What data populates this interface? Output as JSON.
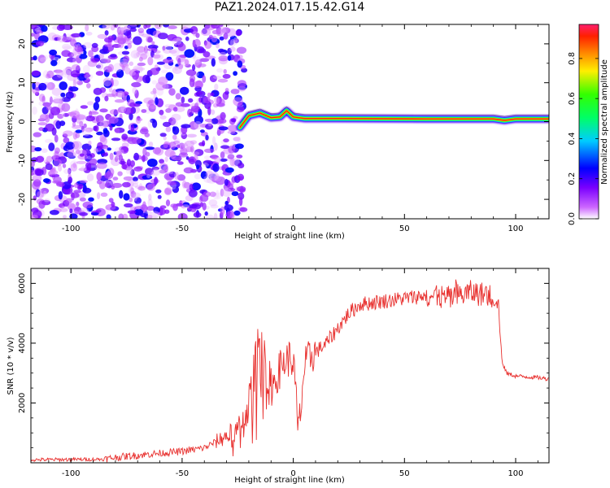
{
  "title": "PAZ1.2024.017.15.42.G14",
  "chart_data": [
    {
      "type": "heatmap",
      "title": "PAZ1.2024.017.15.42.G14",
      "xlabel": "Height of straight line (km)",
      "ylabel": "Frequency (Hz)",
      "xlim": [
        -118,
        115
      ],
      "ylim": [
        -25,
        25
      ],
      "x_ticks": [
        -100,
        -50,
        0,
        50,
        100
      ],
      "y_ticks": [
        -20,
        -10,
        0,
        10,
        20
      ],
      "grid": false,
      "colorbar": {
        "label": "Normalized spectral amplitude",
        "range": [
          0.0,
          0.97
        ],
        "ticks": [
          0.0,
          0.2,
          0.4,
          0.6,
          0.8
        ],
        "colormap": "gist_rainbow_r",
        "low_color": "#ffffff",
        "high_color": "#ff1f6e"
      },
      "features": {
        "noise_region_km": [
          -118,
          -22
        ],
        "noise_amplitude_range": [
          0.0,
          0.25
        ],
        "signal_track": [
          {
            "x": -24,
            "y": -1.5
          },
          {
            "x": -20,
            "y": 1.5
          },
          {
            "x": -15,
            "y": 2.2
          },
          {
            "x": -10,
            "y": 1.0
          },
          {
            "x": -6,
            "y": 1.2
          },
          {
            "x": -3,
            "y": 2.8
          },
          {
            "x": 0,
            "y": 1.2
          },
          {
            "x": 5,
            "y": 0.8
          },
          {
            "x": 20,
            "y": 0.8
          },
          {
            "x": 60,
            "y": 0.7
          },
          {
            "x": 90,
            "y": 0.7
          },
          {
            "x": 95,
            "y": 0.3
          },
          {
            "x": 100,
            "y": 0.7
          },
          {
            "x": 115,
            "y": 0.7
          }
        ],
        "signal_peak_amplitude": 0.95
      }
    },
    {
      "type": "line",
      "xlabel": "Height of straight line (km)",
      "ylabel": "SNR (10 * v/v)",
      "xlim": [
        -118,
        115
      ],
      "ylim": [
        0,
        6500
      ],
      "x_ticks": [
        -100,
        -50,
        0,
        50,
        100
      ],
      "y_ticks": [
        2000,
        4000,
        6000
      ],
      "grid": false,
      "series": [
        {
          "color": "#e8312f",
          "points": [
            [
              -118,
              100
            ],
            [
              -100,
              110
            ],
            [
              -85,
              120
            ],
            [
              -80,
              180
            ],
            [
              -70,
              250
            ],
            [
              -60,
              320
            ],
            [
              -50,
              380
            ],
            [
              -40,
              500
            ],
            [
              -35,
              700
            ],
            [
              -30,
              900
            ],
            [
              -25,
              1100
            ],
            [
              -22,
              1500
            ],
            [
              -20,
              2000
            ],
            [
              -18,
              2600
            ],
            [
              -16,
              3600
            ],
            [
              -14,
              4400
            ],
            [
              -12,
              3000
            ],
            [
              -10,
              2500
            ],
            [
              -8,
              2800
            ],
            [
              -5,
              3300
            ],
            [
              -2,
              3500
            ],
            [
              0,
              3400
            ],
            [
              1,
              2500
            ],
            [
              2,
              1100
            ],
            [
              3,
              1500
            ],
            [
              5,
              3200
            ],
            [
              8,
              3600
            ],
            [
              10,
              3700
            ],
            [
              15,
              4000
            ],
            [
              20,
              4500
            ],
            [
              25,
              5000
            ],
            [
              30,
              5300
            ],
            [
              40,
              5400
            ],
            [
              50,
              5500
            ],
            [
              60,
              5600
            ],
            [
              70,
              5500
            ],
            [
              80,
              5700
            ],
            [
              88,
              5600
            ],
            [
              92,
              5500
            ],
            [
              94,
              3300
            ],
            [
              96,
              3000
            ],
            [
              100,
              2900
            ],
            [
              110,
              2850
            ],
            [
              115,
              2800
            ]
          ]
        }
      ]
    }
  ]
}
